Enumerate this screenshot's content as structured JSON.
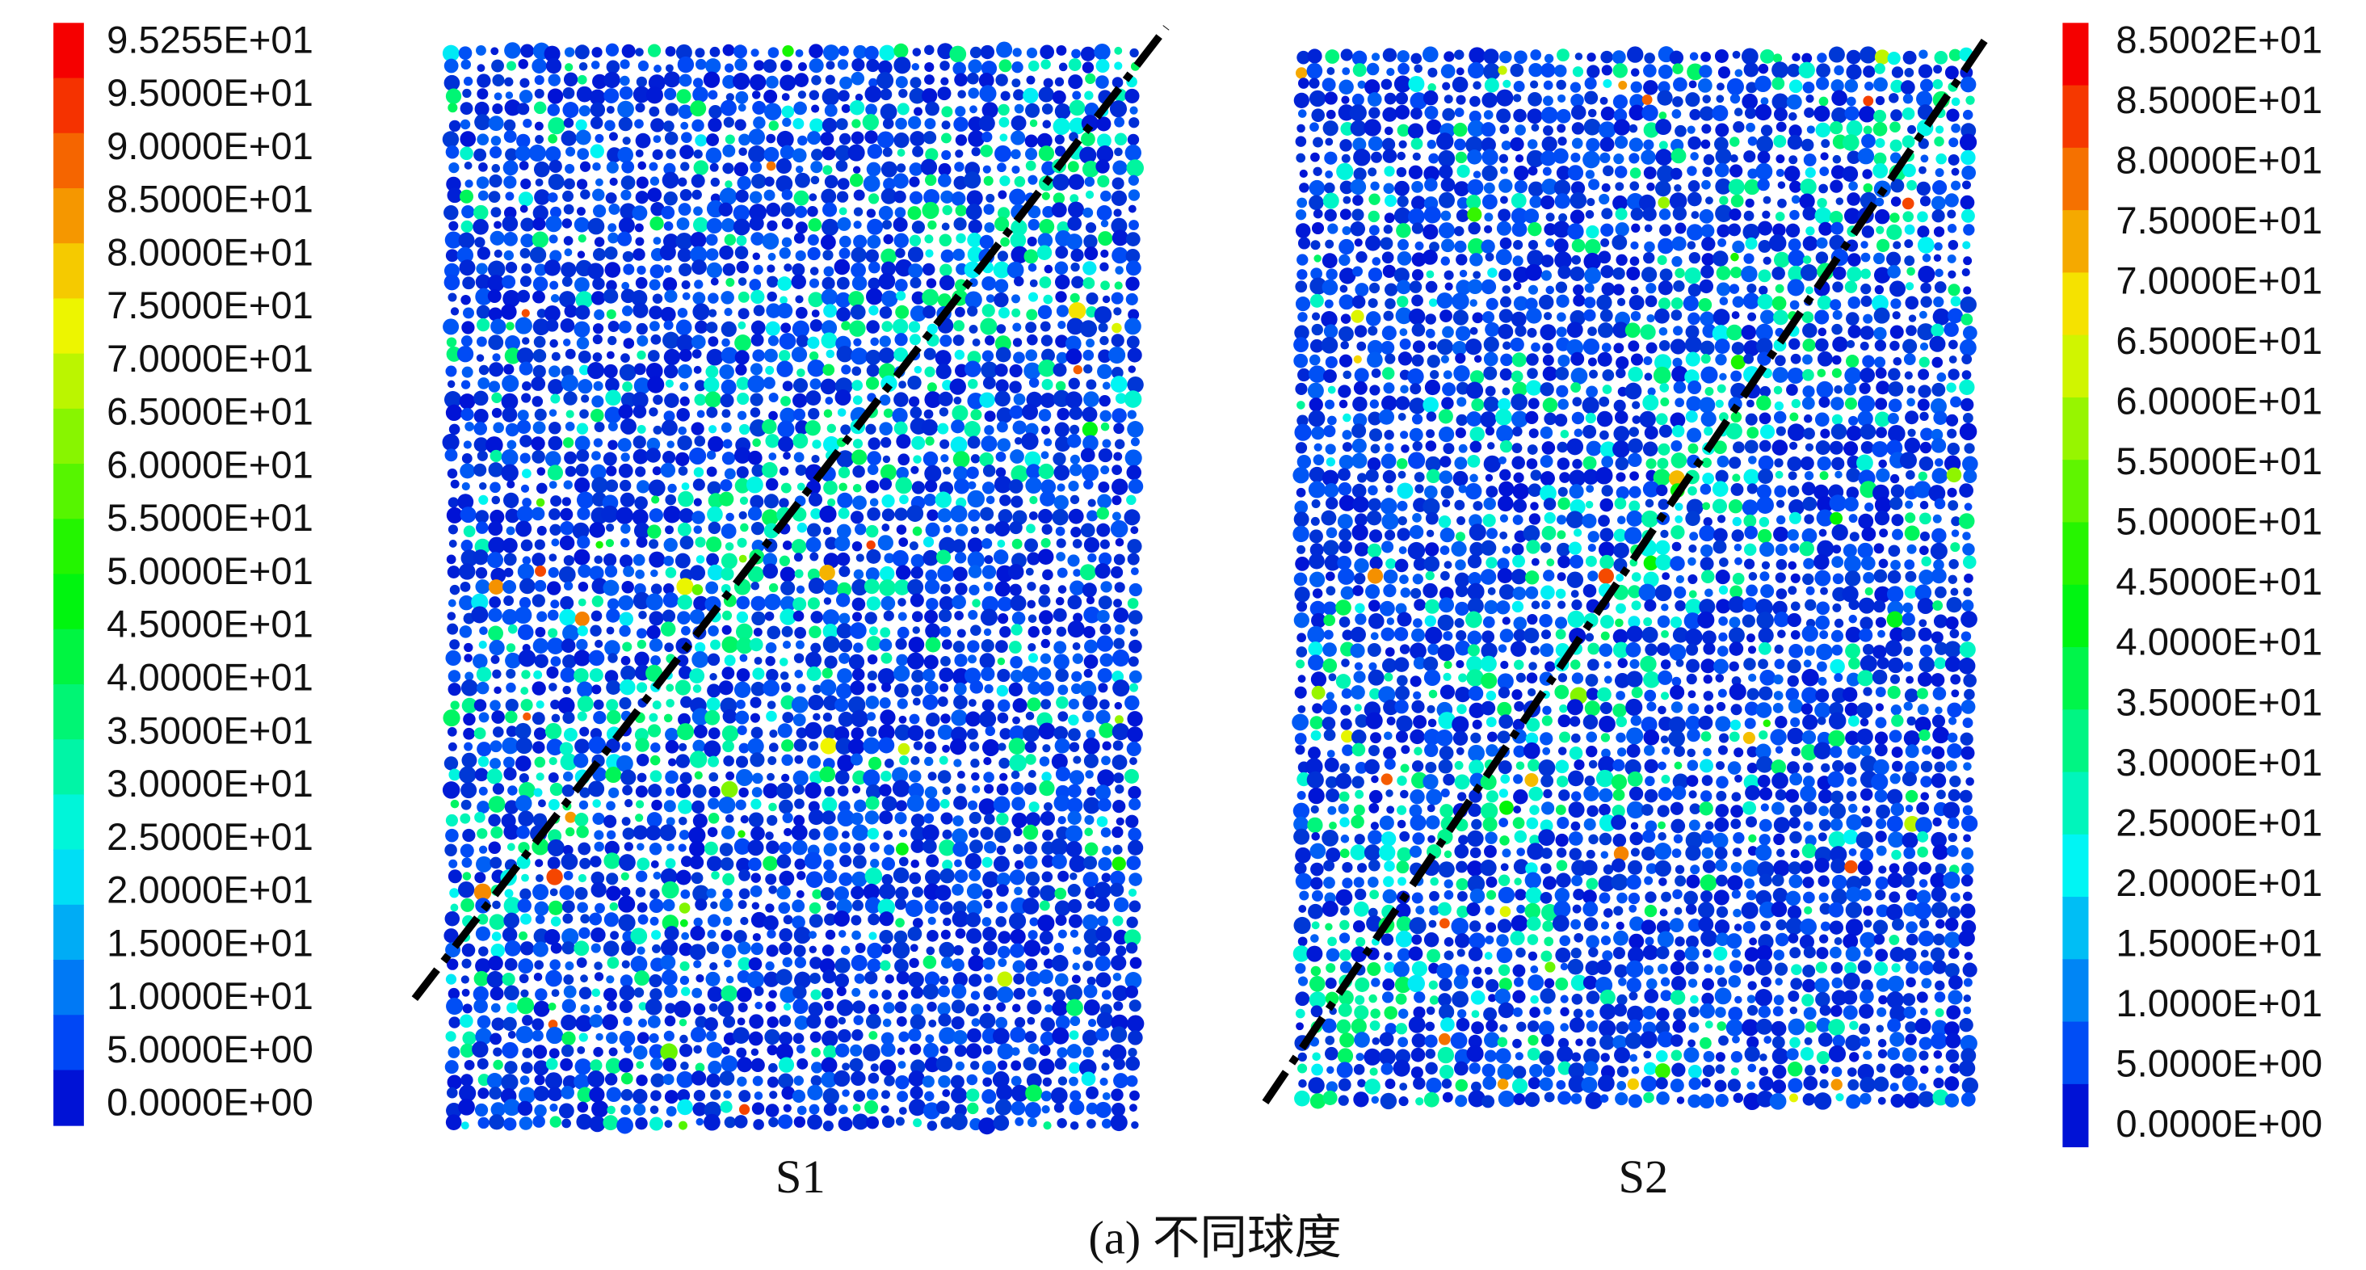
{
  "legend_left": {
    "labels": [
      "9.5255E+01",
      "9.5000E+01",
      "9.0000E+01",
      "8.5000E+01",
      "8.0000E+01",
      "7.5000E+01",
      "7.0000E+01",
      "6.5000E+01",
      "6.0000E+01",
      "5.5000E+01",
      "5.0000E+01",
      "4.5000E+01",
      "4.0000E+01",
      "3.5000E+01",
      "3.0000E+01",
      "2.5000E+01",
      "2.0000E+01",
      "1.5000E+01",
      "1.0000E+01",
      "5.0000E+00",
      "0.0000E+00"
    ]
  },
  "legend_right": {
    "labels": [
      "8.5002E+01",
      "8.5000E+01",
      "8.0000E+01",
      "7.5000E+01",
      "7.0000E+01",
      "6.5000E+01",
      "6.0000E+01",
      "5.5000E+01",
      "5.0000E+01",
      "4.5000E+01",
      "4.0000E+01",
      "3.5000E+01",
      "3.0000E+01",
      "2.5000E+01",
      "2.0000E+01",
      "1.5000E+01",
      "1.0000E+01",
      "5.0000E+00",
      "0.0000E+00"
    ]
  },
  "panels": [
    {
      "label": "S1"
    },
    {
      "label": "S2"
    }
  ],
  "caption": "(a) 不同球度"
}
